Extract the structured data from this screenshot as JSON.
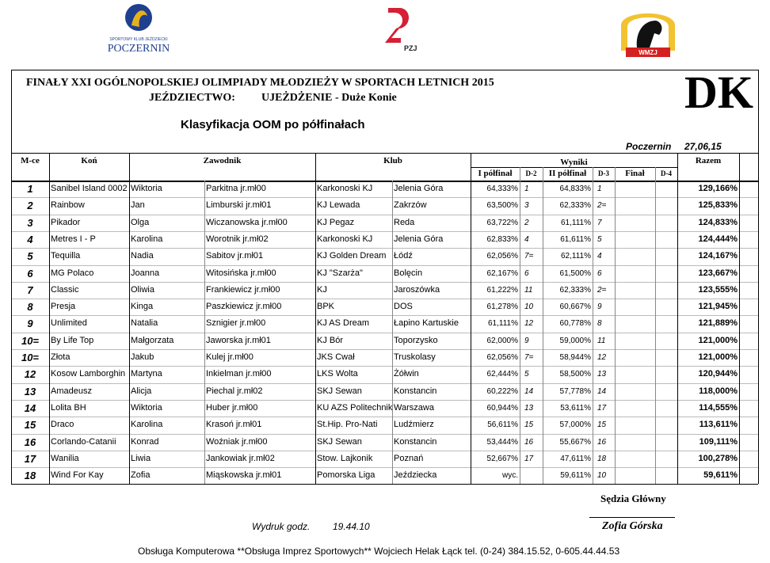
{
  "logos": {
    "club_small": "SPORTOWY KLUB JEŹDZIECKI",
    "club_name": "POCZERNIN",
    "federation": "PZJ",
    "region": "WMZJ"
  },
  "header": {
    "title_line1": "FINAŁY XXI OGÓLNOPOLSKIEJ OLIMPIADY MŁODZIEŻY  W SPORTACH LETNICH  2015",
    "discipline": "JEŹDZIECTWO:",
    "event": "UJEŻDŻENIE - Duże Konie",
    "code": "DK",
    "subtitle": "Klasyfikacja OOM po półfinałach",
    "place": "Poczernin",
    "date": "27,06,15"
  },
  "table": {
    "header": {
      "place": "M-ce",
      "horse": "Koń",
      "rider": "Zawodnik",
      "club": "Klub",
      "results": "Wyniki",
      "total": "Razem"
    },
    "subheader": [
      "I półfinał",
      "D-2",
      "II półfinał",
      "D-3",
      "Finał",
      "D-4"
    ],
    "rows": [
      [
        "1",
        "Sanibel Island 0002",
        "Wiktoria",
        "Parkitna jr.mł00",
        "Karkonoski KJ",
        "Jelenia Góra",
        "64,333%",
        "1",
        "64,833%",
        "1",
        "129,166%"
      ],
      [
        "2",
        "Rainbow",
        "Jan",
        "Limburski jr.mł01",
        "KJ Lewada",
        "Zakrzów",
        "63,500%",
        "3",
        "62,333%",
        "2=",
        "125,833%"
      ],
      [
        "3",
        "Pikador",
        "Olga",
        "Wiczanowska jr.mł00",
        "KJ Pegaz",
        "Reda",
        "63,722%",
        "2",
        "61,111%",
        "7",
        "124,833%"
      ],
      [
        "4",
        "Metres I - P",
        "Karolina",
        "Worotnik jr.mł02",
        "Karkonoski KJ",
        "Jelenia Góra",
        "62,833%",
        "4",
        "61,611%",
        "5",
        "124,444%"
      ],
      [
        "5",
        "Tequilla",
        "Nadia",
        "Sabitov jr.mł01",
        "KJ Golden Dream",
        "Łódź",
        "62,056%",
        "7=",
        "62,111%",
        "4",
        "124,167%"
      ],
      [
        "6",
        "MG Polaco",
        "Joanna",
        "Witosińska jr.mł00",
        "KJ \"Szarża\"",
        "Bolęcin",
        "62,167%",
        "6",
        "61,500%",
        "6",
        "123,667%"
      ],
      [
        "7",
        "Classic",
        "Oliwia",
        "Frankiewicz jr.mł00",
        "KJ",
        "Jaroszówka",
        "61,222%",
        "11",
        "62,333%",
        "2=",
        "123,555%"
      ],
      [
        "8",
        "Presja",
        "Kinga",
        "Paszkiewicz jr.mł00",
        "BPK",
        "DOS",
        "61,278%",
        "10",
        "60,667%",
        "9",
        "121,945%"
      ],
      [
        "9",
        "Unlimited",
        "Natalia",
        "Sznigier jr.mł00",
        "KJ AS Dream",
        "Łapino Kartuskie",
        "61,111%",
        "12",
        "60,778%",
        "8",
        "121,889%"
      ],
      [
        "10=",
        "By Life Top",
        "Małgorzata",
        "Jaworska jr.mł01",
        "KJ Bór",
        "Toporzysko",
        "62,000%",
        "9",
        "59,000%",
        "11",
        "121,000%"
      ],
      [
        "10=",
        "Złota",
        "Jakub",
        "Kulej jr.mł00",
        "JKS Cwał",
        "Truskolasy",
        "62,056%",
        "7=",
        "58,944%",
        "12",
        "121,000%"
      ],
      [
        "12",
        "Kosow Lamborghin",
        "Martyna",
        "Inkielman jr.mł00",
        "LKS Wolta",
        "Żółwin",
        "62,444%",
        "5",
        "58,500%",
        "13",
        "120,944%"
      ],
      [
        "13",
        "Amadeusz",
        "Alicja",
        "Piechal jr.mł02",
        "SKJ Sewan",
        "Konstancin",
        "60,222%",
        "14",
        "57,778%",
        "14",
        "118,000%"
      ],
      [
        "14",
        "Lolita BH",
        "Wiktoria",
        "Huber jr.mł00",
        "KU AZS Politechnik",
        "Warszawa",
        "60,944%",
        "13",
        "53,611%",
        "17",
        "114,555%"
      ],
      [
        "15",
        "Draco",
        "Karolina",
        "Krasoń jr.mł01",
        "St.Hip. Pro-Nati",
        "Ludźmierz",
        "56,611%",
        "15",
        "57,000%",
        "15",
        "113,611%"
      ],
      [
        "16",
        "Corlando-Catanii",
        "Konrad",
        "Woźniak jr.mł00",
        "SKJ Sewan",
        "Konstancin",
        "53,444%",
        "16",
        "55,667%",
        "16",
        "109,111%"
      ],
      [
        "17",
        "Wanilia",
        "Liwia",
        "Jankowiak jr.mł02",
        "Stow. Lajkonik",
        "Poznań",
        "52,667%",
        "17",
        "47,611%",
        "18",
        "100,278%"
      ],
      [
        "18",
        "Wind For Kay",
        "Zofia",
        "Miąskowska jr.mł01",
        "Pomorska Liga",
        "Jeździecka",
        "wyc.",
        null,
        "59,611%",
        "10",
        "59,611%"
      ]
    ]
  },
  "footer": {
    "judge_title": "Sędzia Główny",
    "judge_name": "Zofia Górska",
    "print_label": "Wydruk godz.",
    "print_time": "19.44.10",
    "credits": "Obsługa Komputerowa **Obsługa Imprez Sportowych**  Wojciech Helak  Łąck tel. (0-24) 384.15.52, 0-605.44.44.53"
  }
}
